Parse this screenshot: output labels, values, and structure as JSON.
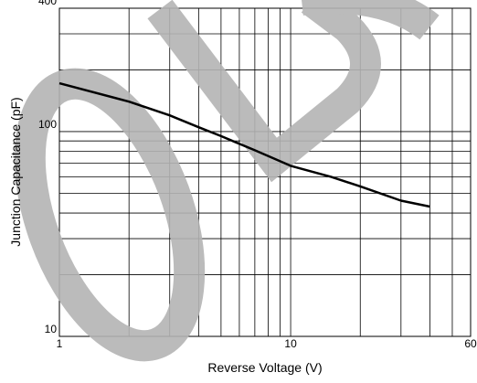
{
  "chart_data": {
    "type": "line",
    "xlabel": "Reverse Voltage (V)",
    "ylabel": "Junction Capacitance (pF)",
    "xscale": "log",
    "yscale": "log",
    "xlim": [
      1,
      60
    ],
    "ylim": [
      10,
      400
    ],
    "xticks": [
      1,
      10,
      60
    ],
    "yticks": [
      10,
      100,
      400
    ],
    "xgrid": [
      2,
      3,
      4,
      5,
      6,
      7,
      8,
      9,
      20,
      30,
      40,
      50
    ],
    "ygrid": [
      20,
      30,
      40,
      50,
      60,
      70,
      80,
      90,
      200,
      300
    ],
    "grid": true,
    "series": [
      {
        "color": "#000000",
        "x": [
          1,
          2,
          3,
          4,
          5,
          7,
          10,
          15,
          20,
          30,
          40
        ],
        "values": [
          172,
          140,
          120,
          105,
          95,
          81,
          68,
          60,
          54,
          46,
          43
        ]
      }
    ]
  }
}
